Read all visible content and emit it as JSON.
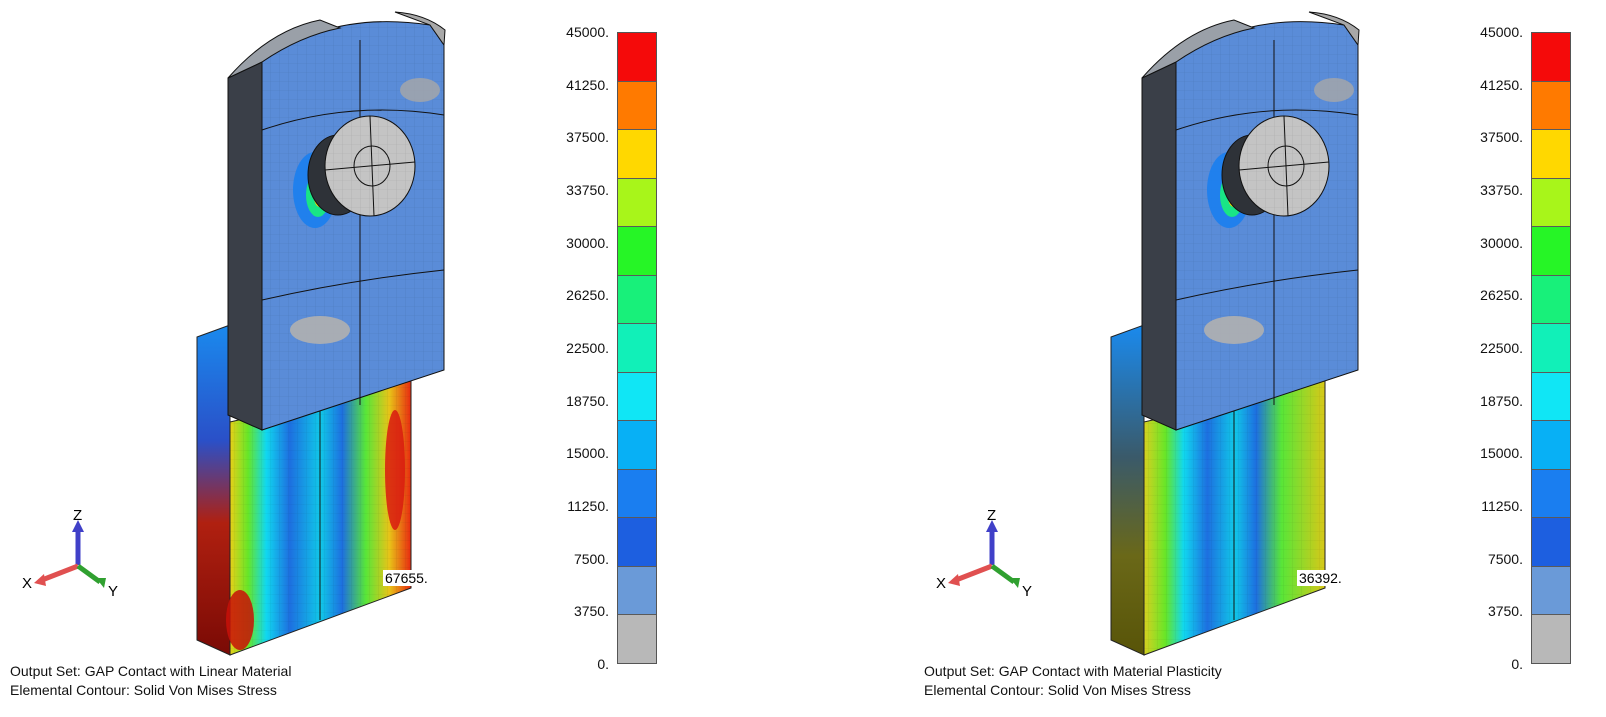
{
  "panels": [
    {
      "output_set": "Output Set: GAP Contact with Linear Material",
      "contour": "Elemental Contour: Solid Von Mises Stress",
      "max_label": "67655."
    },
    {
      "output_set": "Output Set: GAP Contact with Material Plasticity",
      "contour": "Elemental Contour: Solid Von Mises Stress",
      "max_label": "36392."
    }
  ],
  "triad": {
    "x": "X",
    "y": "Y",
    "z": "Z"
  },
  "legend": {
    "labels": [
      "45000.",
      "41250.",
      "37500.",
      "33750.",
      "30000.",
      "26250.",
      "22500.",
      "18750.",
      "15000.",
      "11250.",
      "7500.",
      "3750.",
      "0."
    ],
    "colors": [
      "#f50a0a",
      "#ff7a00",
      "#ffd800",
      "#a8f51a",
      "#26f526",
      "#18f07a",
      "#11f0b8",
      "#10e6f5",
      "#08b0f5",
      "#1a7ef0",
      "#1d5fe0",
      "#6a9ad8",
      "#b8b8b8"
    ]
  }
}
